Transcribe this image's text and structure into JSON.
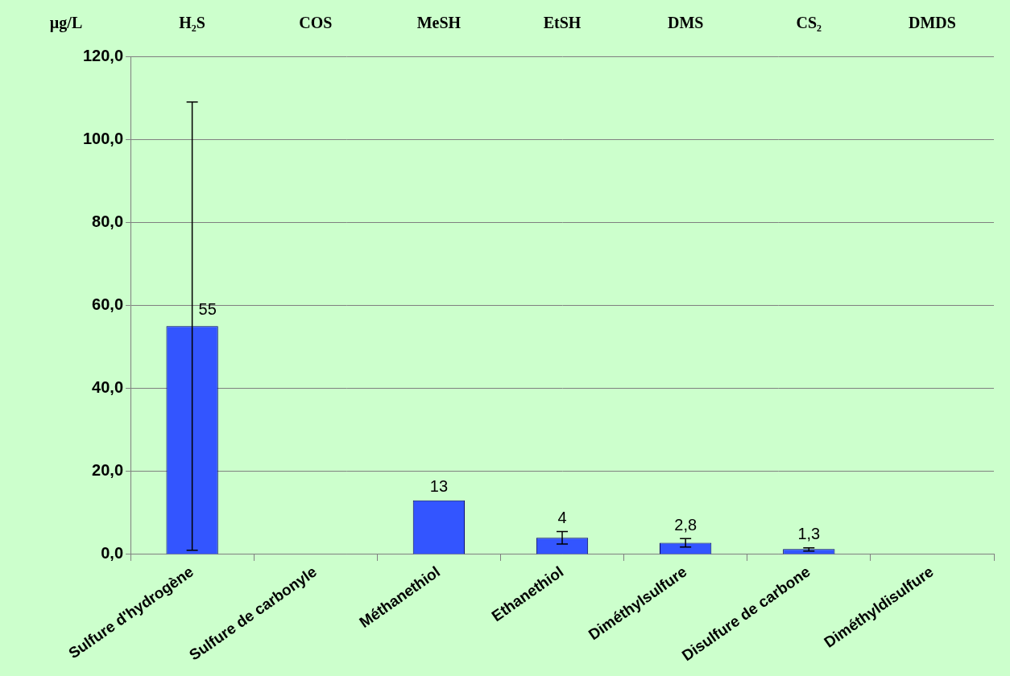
{
  "chart_data": {
    "type": "bar",
    "y_label": "µg/L",
    "category_abbreviations": [
      "H₂S",
      "COS",
      "MeSH",
      "EtSH",
      "DMS",
      "CS₂",
      "DMDS"
    ],
    "categories": [
      "Sulfure d'hydrogène",
      "Sulfure de carbonyle",
      "Méthanethiol",
      "Ethanethiol",
      "Diméthylsulfure",
      "Disulfure de carbone",
      "Diméthyldisulfure"
    ],
    "values": [
      55,
      null,
      13,
      4,
      2.8,
      1.3,
      null
    ],
    "value_labels": [
      "55",
      null,
      "13",
      "4",
      "2,8",
      "1,3",
      null
    ],
    "error_low": [
      1,
      null,
      null,
      2.5,
      1.8,
      0.8,
      null
    ],
    "error_high": [
      109,
      null,
      null,
      5.5,
      3.8,
      1.6,
      null
    ],
    "color": "#3355ff",
    "ylim": [
      0,
      120
    ],
    "yticks": [
      {
        "value": 0,
        "label": "0,0"
      },
      {
        "value": 20,
        "label": "20,0"
      },
      {
        "value": 40,
        "label": "40,0"
      },
      {
        "value": 60,
        "label": "60,0"
      },
      {
        "value": 80,
        "label": "80,0"
      },
      {
        "value": 100,
        "label": "100,0"
      },
      {
        "value": 120,
        "label": "120,0"
      }
    ],
    "grid": true,
    "data_labels": true
  }
}
